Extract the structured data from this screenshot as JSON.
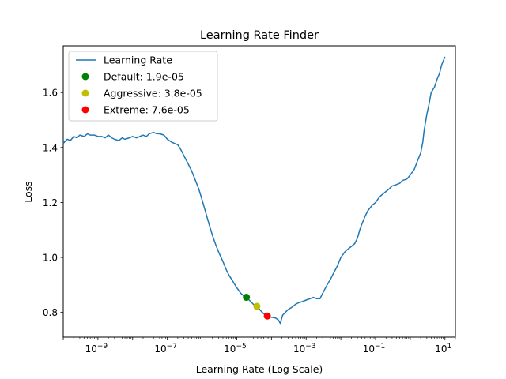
{
  "chart_data": {
    "type": "line",
    "title": "Learning Rate Finder",
    "xlabel": "Learning Rate (Log Scale)",
    "ylabel": "Loss",
    "xscale": "log",
    "xlim": [
      1e-10,
      20
    ],
    "ylim": [
      0.71,
      1.77
    ],
    "grid": false,
    "legend_position": "top-left",
    "x_ticks": [
      {
        "value": 1e-09,
        "base": "10",
        "exp": "−9"
      },
      {
        "value": 1e-07,
        "base": "10",
        "exp": "−7"
      },
      {
        "value": 1e-05,
        "base": "10",
        "exp": "−5"
      },
      {
        "value": 0.001,
        "base": "10",
        "exp": "−3"
      },
      {
        "value": 0.1,
        "base": "10",
        "exp": "−1"
      },
      {
        "value": 10,
        "base": "10",
        "exp": "1"
      }
    ],
    "y_ticks": [
      {
        "value": 0.8,
        "label": "0.8"
      },
      {
        "value": 1.0,
        "label": "1.0"
      },
      {
        "value": 1.2,
        "label": "1.2"
      },
      {
        "value": 1.4,
        "label": "1.4"
      },
      {
        "value": 1.6,
        "label": "1.6"
      }
    ],
    "series": [
      {
        "name": "Learning Rate",
        "color": "#1f77b4",
        "points": [
          [
            1e-10,
            1.415
          ],
          [
            1.3e-10,
            1.43
          ],
          [
            1.6e-10,
            1.425
          ],
          [
            2e-10,
            1.44
          ],
          [
            2.5e-10,
            1.435
          ],
          [
            3e-10,
            1.445
          ],
          [
            4e-10,
            1.44
          ],
          [
            5e-10,
            1.45
          ],
          [
            6e-10,
            1.445
          ],
          [
            8e-10,
            1.445
          ],
          [
            1e-09,
            1.44
          ],
          [
            1.3e-09,
            1.44
          ],
          [
            1.6e-09,
            1.435
          ],
          [
            2e-09,
            1.445
          ],
          [
            2.5e-09,
            1.435
          ],
          [
            3e-09,
            1.43
          ],
          [
            4e-09,
            1.425
          ],
          [
            5e-09,
            1.435
          ],
          [
            6e-09,
            1.43
          ],
          [
            8e-09,
            1.435
          ],
          [
            1e-08,
            1.44
          ],
          [
            1.3e-08,
            1.435
          ],
          [
            1.6e-08,
            1.44
          ],
          [
            2e-08,
            1.445
          ],
          [
            2.5e-08,
            1.44
          ],
          [
            3e-08,
            1.45
          ],
          [
            4e-08,
            1.455
          ],
          [
            5e-08,
            1.45
          ],
          [
            6e-08,
            1.45
          ],
          [
            8e-08,
            1.445
          ],
          [
            1e-07,
            1.43
          ],
          [
            1.3e-07,
            1.42
          ],
          [
            1.6e-07,
            1.415
          ],
          [
            2e-07,
            1.41
          ],
          [
            2.5e-07,
            1.39
          ],
          [
            3e-07,
            1.37
          ],
          [
            4e-07,
            1.34
          ],
          [
            5e-07,
            1.315
          ],
          [
            6e-07,
            1.29
          ],
          [
            8e-07,
            1.25
          ],
          [
            1e-06,
            1.21
          ],
          [
            1.3e-06,
            1.16
          ],
          [
            1.6e-06,
            1.12
          ],
          [
            2e-06,
            1.08
          ],
          [
            2.5e-06,
            1.045
          ],
          [
            3e-06,
            1.02
          ],
          [
            4e-06,
            0.985
          ],
          [
            5e-06,
            0.955
          ],
          [
            6e-06,
            0.935
          ],
          [
            8e-06,
            0.91
          ],
          [
            1e-05,
            0.89
          ],
          [
            1.3e-05,
            0.87
          ],
          [
            1.6e-05,
            0.86
          ],
          [
            1.9e-05,
            0.855
          ],
          [
            2.5e-05,
            0.84
          ],
          [
            3e-05,
            0.83
          ],
          [
            3.8e-05,
            0.822
          ],
          [
            5e-05,
            0.805
          ],
          [
            6e-05,
            0.795
          ],
          [
            7.6e-05,
            0.787
          ],
          [
            0.0001,
            0.782
          ],
          [
            0.00013,
            0.78
          ],
          [
            0.00016,
            0.772
          ],
          [
            0.00018,
            0.76
          ],
          [
            0.00021,
            0.79
          ],
          [
            0.00025,
            0.8
          ],
          [
            0.0003,
            0.81
          ],
          [
            0.0004,
            0.82
          ],
          [
            0.0005,
            0.83
          ],
          [
            0.0006,
            0.835
          ],
          [
            0.0008,
            0.84
          ],
          [
            0.001,
            0.845
          ],
          [
            0.0013,
            0.85
          ],
          [
            0.0016,
            0.855
          ],
          [
            0.002,
            0.85
          ],
          [
            0.0025,
            0.85
          ],
          [
            0.003,
            0.87
          ],
          [
            0.004,
            0.9
          ],
          [
            0.005,
            0.92
          ],
          [
            0.006,
            0.94
          ],
          [
            0.008,
            0.97
          ],
          [
            0.01,
            1.0
          ],
          [
            0.013,
            1.02
          ],
          [
            0.016,
            1.03
          ],
          [
            0.02,
            1.04
          ],
          [
            0.025,
            1.05
          ],
          [
            0.03,
            1.07
          ],
          [
            0.035,
            1.1
          ],
          [
            0.04,
            1.12
          ],
          [
            0.05,
            1.15
          ],
          [
            0.06,
            1.17
          ],
          [
            0.08,
            1.19
          ],
          [
            0.1,
            1.2
          ],
          [
            0.13,
            1.22
          ],
          [
            0.16,
            1.23
          ],
          [
            0.2,
            1.24
          ],
          [
            0.25,
            1.25
          ],
          [
            0.3,
            1.26
          ],
          [
            0.4,
            1.265
          ],
          [
            0.5,
            1.27
          ],
          [
            0.6,
            1.28
          ],
          [
            0.8,
            1.285
          ],
          [
            1,
            1.3
          ],
          [
            1.3,
            1.32
          ],
          [
            1.6,
            1.35
          ],
          [
            2,
            1.38
          ],
          [
            2.3,
            1.42
          ],
          [
            2.5,
            1.46
          ],
          [
            3,
            1.52
          ],
          [
            3.5,
            1.56
          ],
          [
            4,
            1.6
          ],
          [
            5,
            1.62
          ],
          [
            6,
            1.65
          ],
          [
            7,
            1.67
          ],
          [
            8,
            1.7
          ],
          [
            10,
            1.73
          ]
        ]
      }
    ],
    "markers": [
      {
        "name": "Default: 1.9e-05",
        "x": 1.9e-05,
        "y": 0.855,
        "color": "#008000"
      },
      {
        "name": "Aggressive: 3.8e-05",
        "x": 3.8e-05,
        "y": 0.822,
        "color": "#bfbf00"
      },
      {
        "name": "Extreme: 7.6e-05",
        "x": 7.6e-05,
        "y": 0.787,
        "color": "#ff0000"
      }
    ]
  }
}
